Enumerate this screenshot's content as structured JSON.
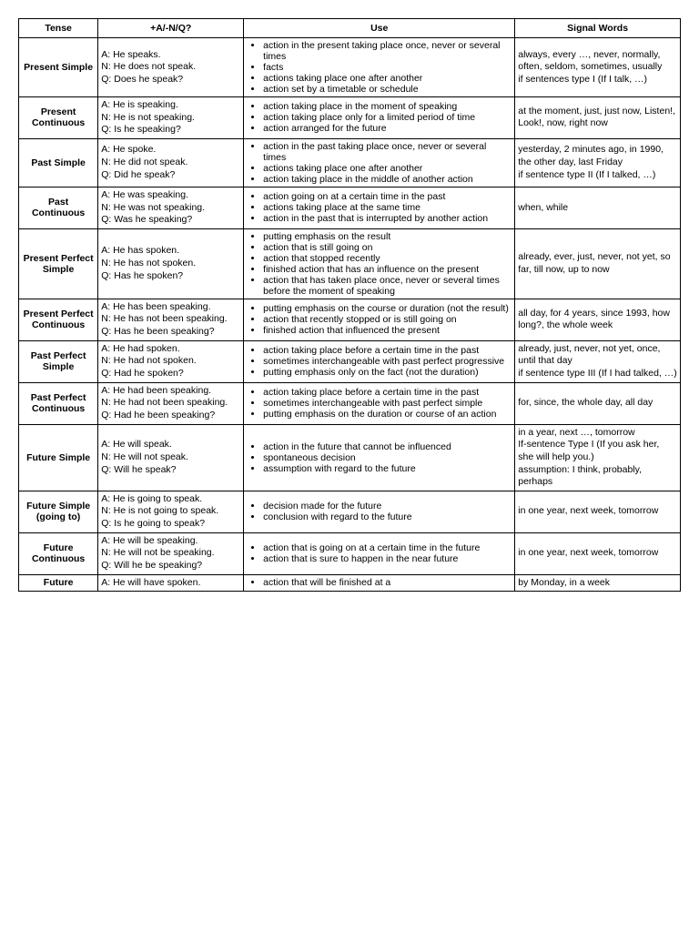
{
  "headers": {
    "tense": "Tense",
    "examples": "+A/-N/Q?",
    "use": "Use",
    "signal": "Signal Words"
  },
  "rows": [
    {
      "tense": "Present Simple",
      "a": "A: He speaks.",
      "n": "N: He does not speak.",
      "q": "Q: Does he speak?",
      "uses": [
        "action in the present taking place once, never or several times",
        "facts",
        "actions taking place one after another",
        "action set by a timetable or schedule"
      ],
      "signal": "always, every …, never, normally, often, seldom, sometimes, usually\nif sentences type I (If I talk, …)"
    },
    {
      "tense": "Present Continuous",
      "a": "A: He is speaking.",
      "n": "N: He is not speaking.",
      "q": "Q: Is he speaking?",
      "uses": [
        "action taking place in the moment of speaking",
        "action taking place only for a limited period of time",
        "action arranged for the future"
      ],
      "signal": "at the moment, just, just now, Listen!, Look!, now, right now"
    },
    {
      "tense": "Past Simple",
      "a": "A: He spoke.",
      "n": "N: He did not speak.",
      "q": "Q: Did he speak?",
      "uses": [
        "action in the past taking place once, never or several times",
        "actions taking place one after another",
        "action taking place in the middle of another action"
      ],
      "signal": "yesterday, 2 minutes ago, in 1990, the other day, last Friday\nif sentence type II (If I talked, …)"
    },
    {
      "tense": "Past Continuous",
      "a": "A: He was speaking.",
      "n": "N: He was not speaking.",
      "q": "Q: Was he speaking?",
      "uses": [
        "action going on at a certain time in the past",
        "actions taking place at the same time",
        "action in the past that is interrupted by another action"
      ],
      "signal": "when, while"
    },
    {
      "tense": "Present Perfect Simple",
      "a": "A: He has spoken.",
      "n": "N: He has not spoken.",
      "q": "Q: Has he spoken?",
      "uses": [
        "putting emphasis on the result",
        "action that is still going on",
        "action that stopped recently",
        "finished action that has an influence on the present",
        "action that has taken place once, never or several times before the moment of speaking"
      ],
      "signal": "already, ever, just, never, not yet, so far, till now, up to now"
    },
    {
      "tense": "Present Perfect Continuous",
      "a": "A: He has been speaking.",
      "n": "N: He has not been speaking.",
      "q": "Q: Has he been speaking?",
      "uses": [
        "putting emphasis on the course or duration (not the result)",
        "action that recently stopped or is still going on",
        "finished action that influenced the present"
      ],
      "signal": "all day, for 4 years, since 1993, how long?, the whole week"
    },
    {
      "tense": "Past Perfect Simple",
      "a": "A: He had spoken.",
      "n": "N: He had not spoken.",
      "q": "Q: Had he spoken?",
      "uses": [
        "action taking place before a certain time in the past",
        "sometimes interchangeable with past perfect progressive",
        "putting emphasis only on the fact (not the duration)"
      ],
      "signal": "already, just, never, not yet, once, until that day\nif sentence type III (If I had talked, …)"
    },
    {
      "tense": "Past Perfect Continuous",
      "a": "A: He had been speaking.",
      "n": "N: He had not been speaking.",
      "q": "Q: Had he been speaking?",
      "uses": [
        "action taking place before a certain time in the past",
        "sometimes interchangeable with past perfect simple",
        "putting emphasis on the duration or course of an action"
      ],
      "signal": "for, since, the whole day, all day"
    },
    {
      "tense": "Future Simple",
      "a": "A: He will speak.",
      "n": "N: He will not speak.",
      "q": "Q: Will he speak?",
      "uses": [
        "action in the future that cannot be influenced",
        "spontaneous decision",
        "assumption with regard to the future"
      ],
      "signal": "in a year, next …, tomorrow\nIf-sentence Type I (If you ask her, she will help you.)\nassumption: I think, probably, perhaps"
    },
    {
      "tense": "Future Simple (going to)",
      "a": "A: He is going to speak.",
      "n": "N: He is not going to speak.",
      "q": "Q: Is he going to speak?",
      "uses": [
        "decision made for the future",
        "conclusion with regard to the future"
      ],
      "signal": "in one year, next week, tomorrow"
    },
    {
      "tense": "Future Continuous",
      "a": "A: He will be speaking.",
      "n": "N: He will not be speaking.",
      "q": "Q: Will he be speaking?",
      "uses": [
        "action that is going on at a certain time in the future",
        "action that is sure to happen in the near future"
      ],
      "signal": "in one year, next week, tomorrow"
    },
    {
      "tense": "Future",
      "a": "A: He will have spoken.",
      "n": "",
      "q": "",
      "uses": [
        "action that will be finished at a"
      ],
      "signal": "by Monday, in a week"
    }
  ]
}
